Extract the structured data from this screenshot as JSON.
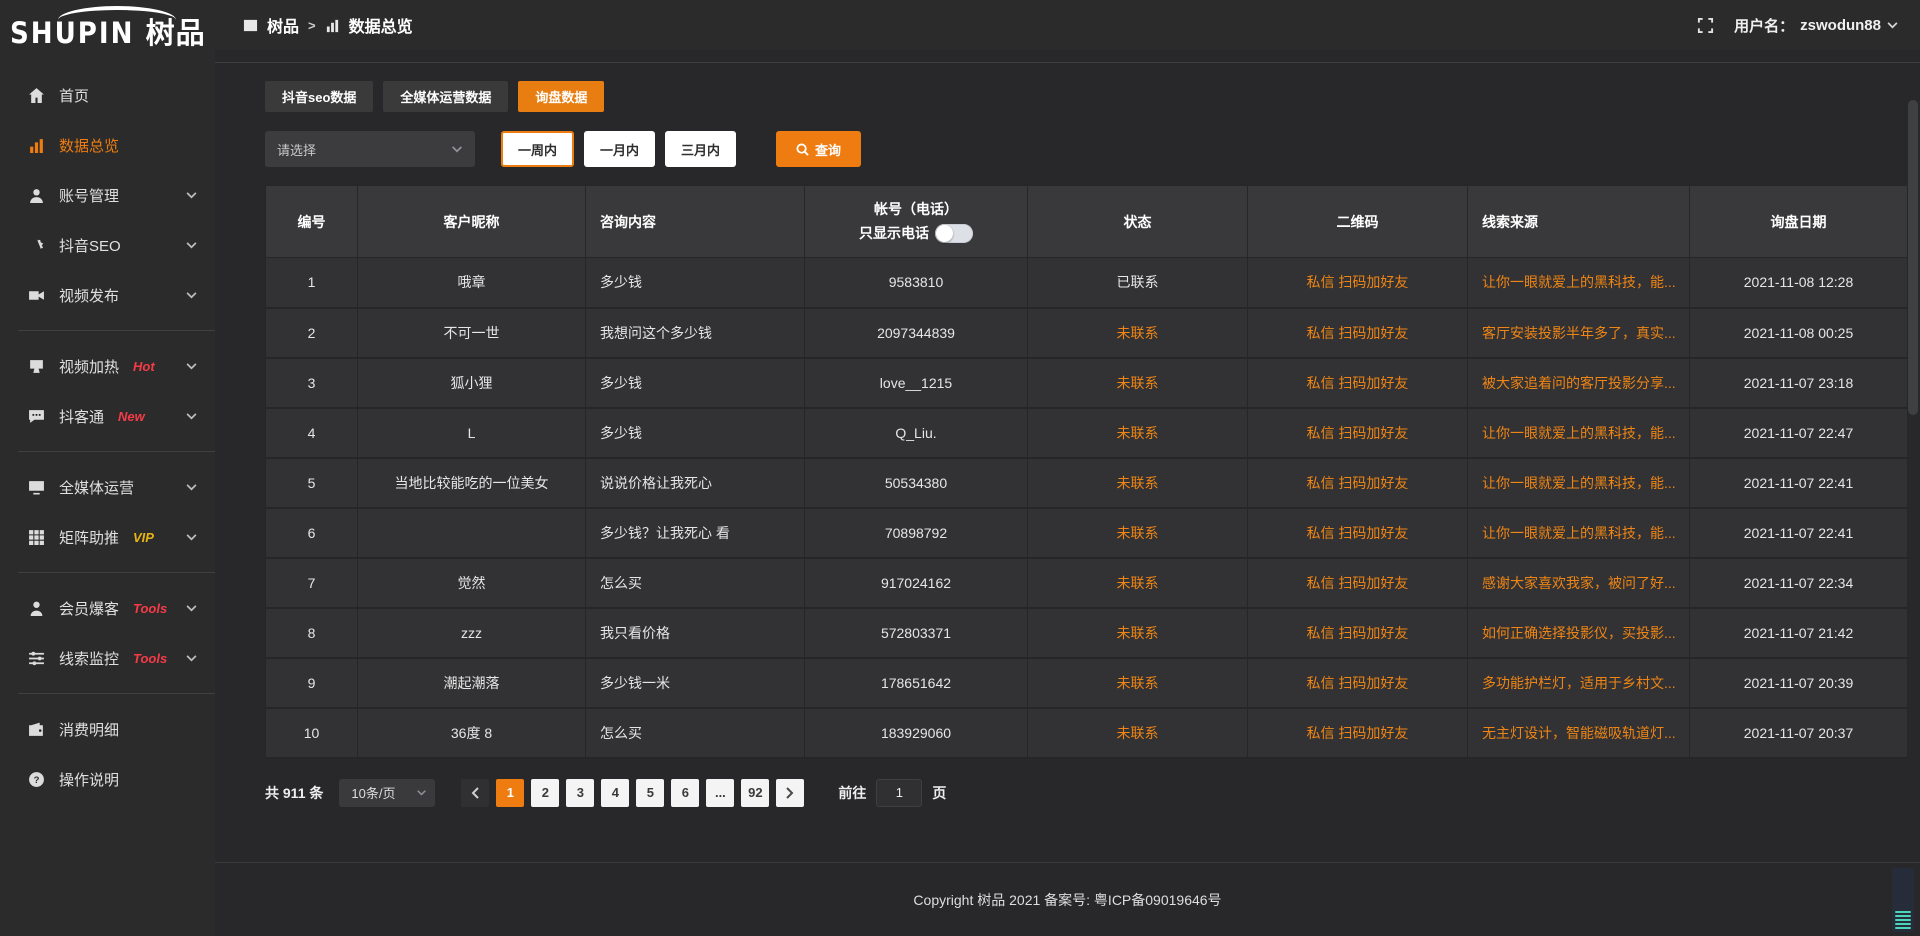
{
  "colors": {
    "accent": "#ee7c10",
    "link_orange": "#ef8514",
    "badge_red": "#f43b47",
    "badge_gold": "#e7b416",
    "bg_dark": "#2b2b2b"
  },
  "logo": {
    "brand_en": "SHUPIN",
    "brand_cn": "树品"
  },
  "topbar": {
    "breadcrumb": [
      {
        "label": "树品",
        "icon": "picture-icon"
      },
      {
        "label": "数据总览",
        "icon": "bar-chart-icon"
      }
    ],
    "separator": ">",
    "username_label": "用户名：",
    "username": "zswodun88"
  },
  "sidebar": {
    "groups": [
      {
        "items": [
          {
            "label": "首页",
            "icon": "home-icon",
            "active": false,
            "badge": "",
            "badge_color": "",
            "chevron": false
          },
          {
            "label": "数据总览",
            "icon": "bar-chart-icon",
            "active": true,
            "badge": "",
            "badge_color": "",
            "chevron": false
          },
          {
            "label": "账号管理",
            "icon": "user-icon",
            "active": false,
            "badge": "",
            "badge_color": "",
            "chevron": true
          },
          {
            "label": "抖音SEO",
            "icon": "gear-icon",
            "active": false,
            "badge": "",
            "badge_color": "",
            "chevron": true
          },
          {
            "label": "视频发布",
            "icon": "video-camera-icon",
            "active": false,
            "badge": "",
            "badge_color": "",
            "chevron": true
          }
        ]
      },
      {
        "items": [
          {
            "label": "视频加热",
            "icon": "monitor-stand-icon",
            "active": false,
            "badge": "Hot",
            "badge_color": "#f43b47",
            "chevron": true
          },
          {
            "label": "抖客通",
            "icon": "chat-bubble-icon",
            "active": false,
            "badge": "New",
            "badge_color": "#f43b47",
            "chevron": true
          }
        ]
      },
      {
        "items": [
          {
            "label": "全媒体运营",
            "icon": "monitor-icon",
            "active": false,
            "badge": "",
            "badge_color": "",
            "chevron": true
          },
          {
            "label": "矩阵助推",
            "icon": "grid-icon",
            "active": false,
            "badge": "VIP",
            "badge_color": "#e7b416",
            "chevron": true
          }
        ]
      },
      {
        "items": [
          {
            "label": "会员爆客",
            "icon": "member-icon",
            "active": false,
            "badge": "Tools",
            "badge_color": "#f43b47",
            "chevron": true
          },
          {
            "label": "线索监控",
            "icon": "sliders-icon",
            "active": false,
            "badge": "Tools",
            "badge_color": "#f43b47",
            "chevron": true
          }
        ]
      },
      {
        "items": [
          {
            "label": "消费明细",
            "icon": "wallet-icon",
            "active": false,
            "badge": "",
            "badge_color": "",
            "chevron": false
          },
          {
            "label": "操作说明",
            "icon": "question-circle-icon",
            "active": false,
            "badge": "",
            "badge_color": "",
            "chevron": false
          }
        ]
      }
    ]
  },
  "tabs": [
    {
      "label": "抖音seo数据",
      "active": false
    },
    {
      "label": "全媒体运营数据",
      "active": false
    },
    {
      "label": "询盘数据",
      "active": true
    }
  ],
  "filter": {
    "select_placeholder": "请选择",
    "range_buttons": [
      {
        "label": "一周内",
        "active": true
      },
      {
        "label": "一月内",
        "active": false
      },
      {
        "label": "三月内",
        "active": false
      }
    ],
    "search_label": "查询"
  },
  "table": {
    "columns": [
      "编号",
      "客户昵称",
      "咨询内容",
      "帐号（电话）",
      "状态",
      "二维码",
      "线索来源",
      "询盘日期"
    ],
    "phone_toggle_label": "只显示电话",
    "rows": [
      {
        "no": "1",
        "nickname": "哦章",
        "content": "多少钱",
        "account": "9583810",
        "status": "已联系",
        "contacted": true,
        "qr": "私信 扫码加好友",
        "source": "让你一眼就爱上的黑科技，能...",
        "date": "2021-11-08 12:28"
      },
      {
        "no": "2",
        "nickname": "不可一世",
        "content": "我想问这个多少钱",
        "account": "2097344839",
        "status": "未联系",
        "contacted": false,
        "qr": "私信 扫码加好友",
        "source": "客厅安装投影半年多了，真实...",
        "date": "2021-11-08 00:25"
      },
      {
        "no": "3",
        "nickname": "狐小狸",
        "content": "多少钱",
        "account": "love__1215",
        "status": "未联系",
        "contacted": false,
        "qr": "私信 扫码加好友",
        "source": "被大家追着问的客厅投影分享...",
        "date": "2021-11-07 23:18"
      },
      {
        "no": "4",
        "nickname": "L",
        "content": "多少钱",
        "account": "Q_Liu.",
        "status": "未联系",
        "contacted": false,
        "qr": "私信 扫码加好友",
        "source": "让你一眼就爱上的黑科技，能...",
        "date": "2021-11-07 22:47"
      },
      {
        "no": "5",
        "nickname": "当地比较能吃的一位美女",
        "content": "说说价格让我死心",
        "account": "50534380",
        "status": "未联系",
        "contacted": false,
        "qr": "私信 扫码加好友",
        "source": "让你一眼就爱上的黑科技，能...",
        "date": "2021-11-07 22:41"
      },
      {
        "no": "6",
        "nickname": "",
        "content": "多少钱？让我死心 看",
        "account": "70898792",
        "status": "未联系",
        "contacted": false,
        "qr": "私信 扫码加好友",
        "source": "让你一眼就爱上的黑科技，能...",
        "date": "2021-11-07 22:41"
      },
      {
        "no": "7",
        "nickname": "觉然",
        "content": "怎么买",
        "account": "917024162",
        "status": "未联系",
        "contacted": false,
        "qr": "私信 扫码加好友",
        "source": "感谢大家喜欢我家，被问了好...",
        "date": "2021-11-07 22:34"
      },
      {
        "no": "8",
        "nickname": "zzz",
        "content": "我只看价格",
        "account": "572803371",
        "status": "未联系",
        "contacted": false,
        "qr": "私信 扫码加好友",
        "source": "如何正确选择投影仪，买投影...",
        "date": "2021-11-07 21:42"
      },
      {
        "no": "9",
        "nickname": "潮起潮落",
        "content": "多少钱一米",
        "account": "178651642",
        "status": "未联系",
        "contacted": false,
        "qr": "私信 扫码加好友",
        "source": "多功能护栏灯，适用于乡村文...",
        "date": "2021-11-07 20:39"
      },
      {
        "no": "10",
        "nickname": "36度 8",
        "content": "怎么买",
        "account": "183929060",
        "status": "未联系",
        "contacted": false,
        "qr": "私信 扫码加好友",
        "source": "无主灯设计，智能磁吸轨道灯...",
        "date": "2021-11-07 20:37"
      }
    ]
  },
  "pagination": {
    "total_label": "共 911 条",
    "page_size_label": "10条/页",
    "pages": [
      "1",
      "2",
      "3",
      "4",
      "5",
      "6",
      "...",
      "92"
    ],
    "active_page": "1",
    "goto_label": "前往",
    "goto_value": "1",
    "page_unit_label": "页"
  },
  "footer": {
    "copyright": "Copyright 树品 2021 备案号: 粤ICP备09019646号"
  }
}
